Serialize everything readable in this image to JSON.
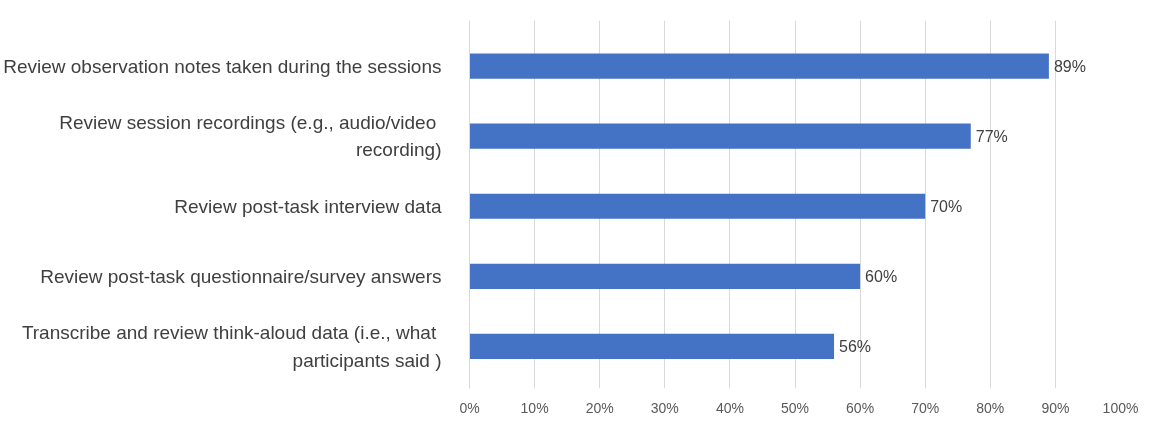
{
  "chart_data": {
    "type": "bar",
    "orientation": "horizontal",
    "categories": [
      "Review observation notes taken during the sessions",
      "Review session recordings (e.g.,  audio/video recording)",
      "Review post-task interview data",
      "Review post-task questionnaire/survey answers",
      "Transcribe and review think-aloud data (i.e.,  what participants said )"
    ],
    "values": [
      89,
      77,
      70,
      60,
      56
    ],
    "value_labels": [
      "89%",
      "77%",
      "70%",
      "60%",
      "56%"
    ],
    "color": "#4472c4",
    "xlim": [
      0,
      100
    ],
    "xticks": [
      {
        "value": 0,
        "label": "0%"
      },
      {
        "value": 10,
        "label": "10%"
      },
      {
        "value": 20,
        "label": "20%"
      },
      {
        "value": 30,
        "label": "30%"
      },
      {
        "value": 40,
        "label": "40%"
      },
      {
        "value": 50,
        "label": "50%"
      },
      {
        "value": 60,
        "label": "60%"
      },
      {
        "value": 70,
        "label": "70%"
      },
      {
        "value": 80,
        "label": "80%"
      },
      {
        "value": 90,
        "label": "90%"
      },
      {
        "value": 100,
        "label": "100%"
      }
    ],
    "grid": "x"
  }
}
